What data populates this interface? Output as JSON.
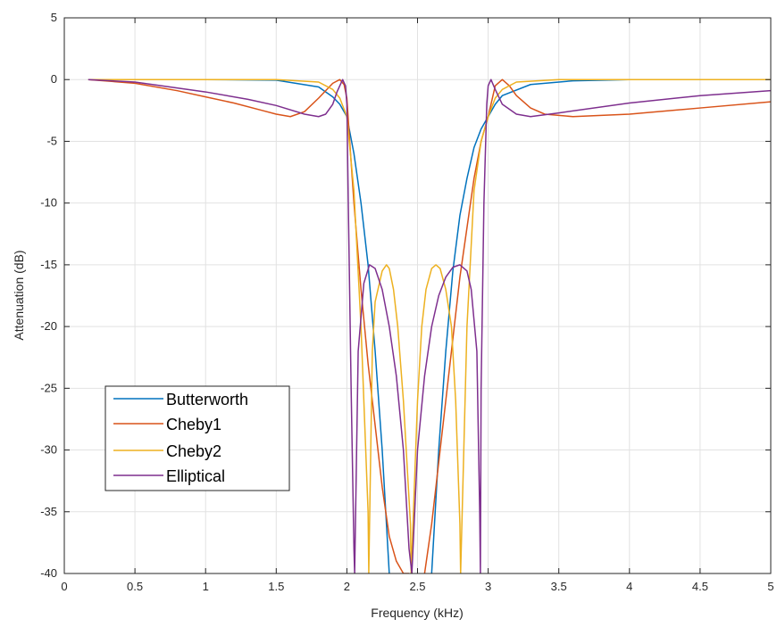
{
  "chart_data": {
    "type": "line",
    "xlabel": "Frequency (kHz)",
    "ylabel": "Attenuation (dB)",
    "xlim": [
      0,
      5
    ],
    "ylim": [
      -40,
      5
    ],
    "xticks": [
      0,
      0.5,
      1,
      1.5,
      2,
      2.5,
      3,
      3.5,
      4,
      4.5,
      5
    ],
    "xtick_labels": [
      "0",
      "0.5",
      "1",
      "1.5",
      "2",
      "2.5",
      "3",
      "3.5",
      "4",
      "4.5",
      "5"
    ],
    "yticks": [
      5,
      0,
      -5,
      -10,
      -15,
      -20,
      -25,
      -30,
      -35,
      -40
    ],
    "ytick_labels": [
      "5",
      "0",
      "-5",
      "-10",
      "-15",
      "-20",
      "-25",
      "-30",
      "-35",
      "-40"
    ],
    "grid": true,
    "legend_position": "bottom-left",
    "series": [
      {
        "name": "Butterworth",
        "color": "#0072BD",
        "x": [
          0.17,
          0.5,
          1.0,
          1.5,
          1.8,
          1.9,
          1.95,
          2.0,
          2.05,
          2.1,
          2.15,
          2.2,
          2.25,
          2.3,
          2.35,
          2.4,
          2.45,
          2.5,
          2.55,
          2.6,
          2.65,
          2.7,
          2.75,
          2.8,
          2.85,
          2.9,
          2.95,
          3.0,
          3.05,
          3.1,
          3.3,
          3.6,
          4.0,
          5.0
        ],
        "y": [
          0,
          0,
          0,
          -0.05,
          -0.6,
          -1.4,
          -2.0,
          -3.0,
          -6.0,
          -10.0,
          -15.0,
          -22.0,
          -30.0,
          -40.0,
          null,
          null,
          null,
          null,
          null,
          -40.0,
          -30.0,
          -22.0,
          -15.5,
          -11.0,
          -8.0,
          -5.5,
          -4.0,
          -3.0,
          -2.0,
          -1.3,
          -0.4,
          -0.1,
          0,
          0
        ]
      },
      {
        "name": "Cheby1",
        "color": "#D95319",
        "x": [
          0.17,
          0.5,
          0.8,
          1.0,
          1.2,
          1.4,
          1.5,
          1.6,
          1.7,
          1.8,
          1.9,
          1.95,
          1.98,
          2.0,
          2.02,
          2.05,
          2.1,
          2.15,
          2.2,
          2.25,
          2.3,
          2.35,
          2.4,
          2.44,
          2.45,
          2.5,
          2.55,
          2.6,
          2.65,
          2.7,
          2.75,
          2.8,
          2.85,
          2.9,
          2.95,
          3.0,
          3.02,
          3.05,
          3.1,
          3.15,
          3.2,
          3.3,
          3.4,
          3.6,
          4.0,
          4.5,
          5.0
        ],
        "y": [
          0,
          -0.3,
          -0.9,
          -1.4,
          -1.9,
          -2.5,
          -2.8,
          -3.0,
          -2.6,
          -1.5,
          -0.3,
          0,
          -0.4,
          -1.5,
          -5.0,
          -10.0,
          -17.0,
          -23.0,
          -28.0,
          -33.0,
          -37.0,
          -39.0,
          -40.0,
          -40.0,
          null,
          null,
          -40.0,
          -36.0,
          -31.0,
          -26.0,
          -21.0,
          -16.0,
          -12.0,
          -8.0,
          -5.0,
          -3.0,
          -2.0,
          -0.5,
          0,
          -0.5,
          -1.3,
          -2.3,
          -2.8,
          -3.0,
          -2.8,
          -2.3,
          -1.8
        ]
      },
      {
        "name": "Cheby2",
        "color": "#EDB120",
        "x": [
          0.17,
          1.0,
          1.5,
          1.8,
          1.9,
          1.95,
          2.0,
          2.05,
          2.1,
          2.15,
          2.155,
          2.18,
          2.2,
          2.25,
          2.28,
          2.3,
          2.33,
          2.36,
          2.4,
          2.45,
          2.455,
          2.5,
          2.53,
          2.56,
          2.6,
          2.63,
          2.66,
          2.7,
          2.74,
          2.77,
          2.8,
          2.805,
          2.85,
          2.9,
          2.95,
          3.0,
          3.05,
          3.1,
          3.2,
          3.5,
          5.0
        ],
        "y": [
          0,
          0,
          0,
          -0.2,
          -0.8,
          -1.5,
          -3.0,
          -9.0,
          -20.0,
          -35.0,
          -40.0,
          -22.0,
          -18.0,
          -15.5,
          -15.0,
          -15.3,
          -17.0,
          -20.0,
          -26.0,
          -36.0,
          -40.0,
          -26.0,
          -20.0,
          -17.0,
          -15.3,
          -15.0,
          -15.3,
          -17.0,
          -20.0,
          -26.0,
          -36.0,
          -40.0,
          -20.0,
          -9.0,
          -5.0,
          -3.0,
          -1.5,
          -0.8,
          -0.2,
          0,
          0
        ]
      },
      {
        "name": "Elliptical",
        "color": "#7E2F8E",
        "x": [
          0.17,
          0.5,
          1.0,
          1.3,
          1.5,
          1.7,
          1.8,
          1.85,
          1.9,
          1.93,
          1.97,
          1.99,
          2.0,
          2.01,
          2.03,
          2.05,
          2.055,
          2.08,
          2.12,
          2.16,
          2.2,
          2.25,
          2.3,
          2.35,
          2.4,
          2.44,
          2.46,
          2.5,
          2.55,
          2.6,
          2.65,
          2.7,
          2.75,
          2.8,
          2.85,
          2.88,
          2.92,
          2.94,
          2.945,
          2.95,
          2.97,
          2.99,
          3.0,
          3.02,
          3.05,
          3.1,
          3.2,
          3.3,
          3.5,
          4.0,
          4.5,
          5.0
        ],
        "y": [
          0,
          -0.2,
          -1.0,
          -1.6,
          -2.1,
          -2.8,
          -3.0,
          -2.8,
          -2.0,
          -1.0,
          0,
          -0.5,
          -2.0,
          -10.0,
          -25.0,
          -38.0,
          -40.0,
          -22.0,
          -16.5,
          -15.0,
          -15.3,
          -17.0,
          -20.0,
          -24.0,
          -30.0,
          -38.0,
          -40.0,
          -30.0,
          -24.0,
          -20.0,
          -17.5,
          -16.0,
          -15.2,
          -15.0,
          -15.5,
          -17.0,
          -22.0,
          -35.0,
          -40.0,
          -25.0,
          -10.0,
          -2.0,
          -0.5,
          0,
          -0.8,
          -2.0,
          -2.8,
          -3.0,
          -2.7,
          -1.9,
          -1.3,
          -0.9
        ]
      }
    ]
  }
}
